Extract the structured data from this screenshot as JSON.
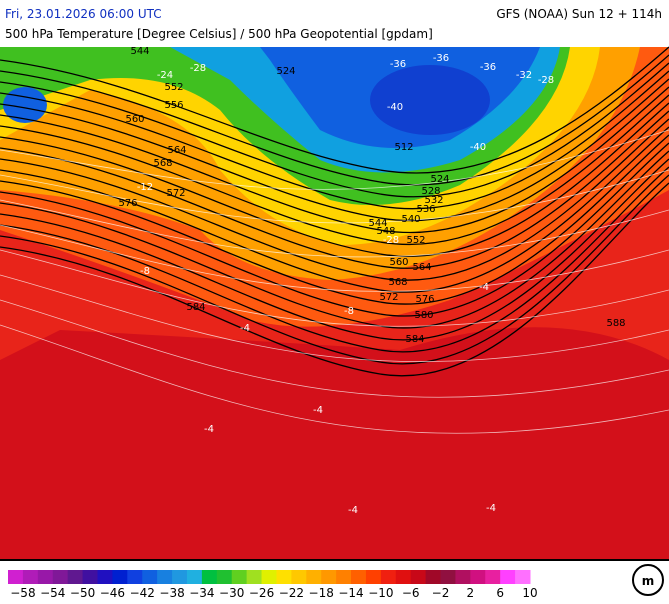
{
  "header": {
    "date": "Fri, 23.01.2026 06:00 UTC",
    "model": "GFS (NOAA) Sun 12 + 114h",
    "subtitle": "500 hPa Temperature [Degree Celsius] / 500 hPa Geopotential [gpdam]"
  },
  "contour_labels": [
    "544",
    "552",
    "556",
    "560",
    "564",
    "568",
    "572",
    "576",
    "584",
    "524",
    "512",
    "524",
    "528",
    "532",
    "536",
    "540",
    "544",
    "548",
    "552",
    "560",
    "564",
    "568",
    "572",
    "576",
    "580",
    "584",
    "588"
  ],
  "temperature_labels": [
    "-24",
    "-28",
    "-36",
    "-36",
    "-36",
    "-32",
    "-28",
    "-40",
    "-40",
    "-28",
    "-8",
    "-4",
    "-4",
    "-4",
    "-4",
    "-4",
    "-4",
    "-8",
    "-12"
  ],
  "legend": {
    "labels": [
      "−58",
      "−54",
      "−50",
      "−46",
      "−42",
      "−38",
      "−34",
      "−30",
      "−26",
      "−22",
      "−18",
      "−14",
      "−10",
      "−6",
      "−2",
      "2",
      "6",
      "10"
    ],
    "colors": [
      "#d020d0",
      "#b01cb8",
      "#9818a8",
      "#801898",
      "#601890",
      "#4010a0",
      "#2010c0",
      "#0020d0",
      "#1040e0",
      "#1060e0",
      "#1880e0",
      "#2098e0",
      "#20b0e0",
      "#00c040",
      "#20c030",
      "#60d020",
      "#a0e020",
      "#e0f000",
      "#ffe000",
      "#ffc800",
      "#ffb000",
      "#ff9800",
      "#ff8000",
      "#ff6000",
      "#ff4000",
      "#f02010",
      "#e01010",
      "#c80818",
      "#a00828",
      "#901040",
      "#b01060",
      "#d01080",
      "#e820a0",
      "#ff40ff",
      "#ff70ff"
    ]
  }
}
